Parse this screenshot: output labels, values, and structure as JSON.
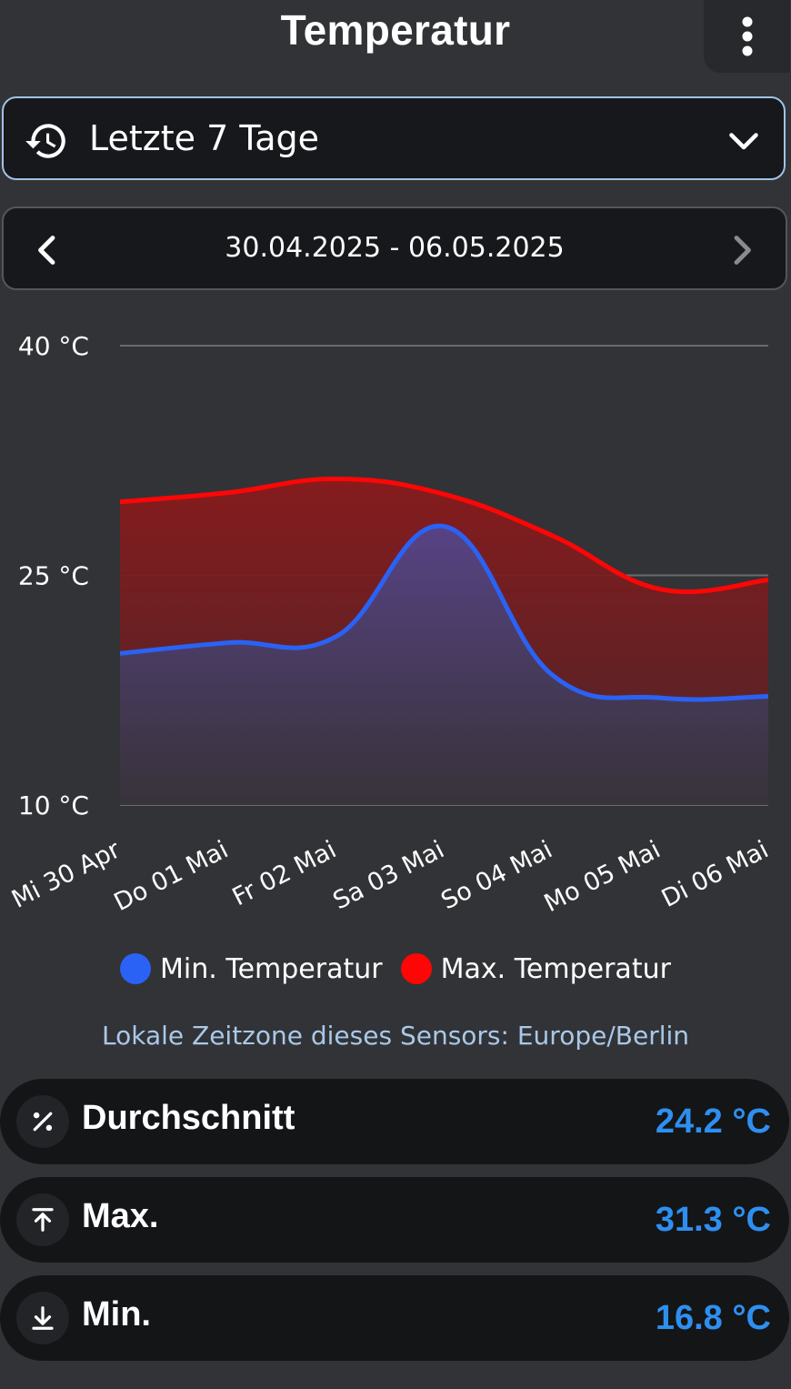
{
  "header": {
    "title": "Temperatur",
    "menu_icon": "more-vert-icon"
  },
  "period_select": {
    "icon": "history-icon",
    "label": "Letzte 7 Tage"
  },
  "date_nav": {
    "range": "30.04.2025 - 06.05.2025"
  },
  "chart_data": {
    "type": "area",
    "x": [
      "Mi 30 Apr",
      "Do 01 Mai",
      "Fr 02 Mai",
      "Sa 03 Mai",
      "So 04 Mai",
      "Mo 05 Mai",
      "Di 06 Mai"
    ],
    "series": [
      {
        "name": "Min. Temperatur",
        "color": "#2a62f5",
        "values": [
          19.9,
          20.6,
          21.0,
          28.2,
          18.5,
          17.0,
          17.1
        ]
      },
      {
        "name": "Max. Temperatur",
        "color": "#ff0606",
        "values": [
          29.8,
          30.4,
          31.3,
          30.3,
          27.6,
          24.1,
          24.7
        ]
      }
    ],
    "y_ticks": [
      {
        "value": 40,
        "label": "40 °C"
      },
      {
        "value": 25,
        "label": "25 °C"
      },
      {
        "value": 10,
        "label": "10 °C"
      }
    ],
    "ylim": [
      10,
      40
    ],
    "grid": true,
    "legend_position": "bottom"
  },
  "timezone": "Lokale Zeitzone dieses Sensors: Europe/Berlin",
  "stats": [
    {
      "icon": "percent-icon",
      "label": "Durchschnitt",
      "value": "24.2 °C"
    },
    {
      "icon": "arrow-up-to-line-icon",
      "label": "Max.",
      "value": "31.3 °C"
    },
    {
      "icon": "arrow-down-to-line-icon",
      "label": "Min.",
      "value": "16.8 °C"
    }
  ],
  "colors": {
    "accent": "#2e8ff0",
    "min_series": "#2a62f5",
    "max_series": "#ff0606"
  }
}
